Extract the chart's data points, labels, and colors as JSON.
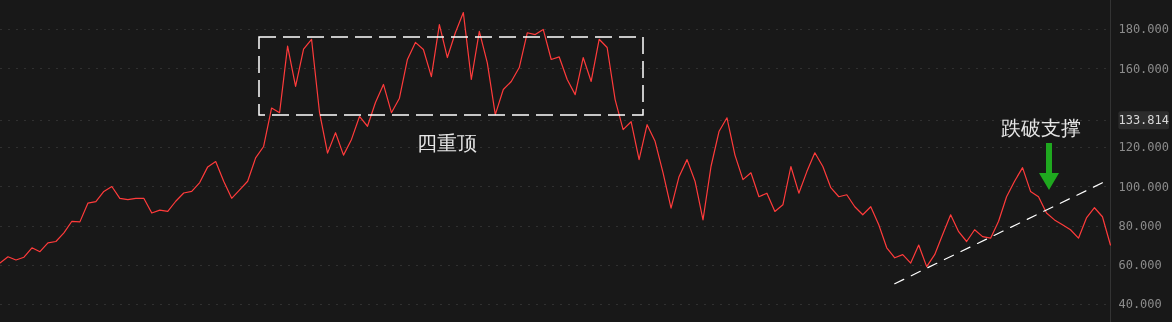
{
  "chart_data": {
    "type": "line",
    "categories": [
      null,
      null,
      null,
      null,
      null,
      null,
      null,
      null,
      null,
      null,
      null,
      null,
      null,
      null,
      null,
      null,
      null,
      null,
      null,
      null,
      null,
      null,
      null,
      null,
      null,
      null,
      null,
      null,
      null,
      null,
      null,
      null,
      null,
      null,
      null,
      null,
      null,
      null,
      null,
      null,
      null,
      null,
      null,
      null,
      null,
      null,
      null,
      null,
      null,
      null,
      null,
      null,
      null,
      null,
      null,
      null,
      null,
      null,
      null,
      null,
      null,
      null,
      null,
      null,
      null,
      null,
      null,
      null,
      null,
      null,
      null,
      null,
      null,
      null,
      null,
      null,
      null,
      null,
      null,
      null,
      null,
      null,
      null,
      null,
      null,
      null,
      null,
      null,
      null,
      null,
      null,
      null,
      null,
      null,
      null,
      null,
      null,
      null,
      null,
      null,
      null,
      null,
      null,
      null,
      null,
      null,
      null,
      null,
      null,
      null,
      null,
      null,
      null,
      null,
      null,
      null,
      null,
      null,
      null,
      null,
      null,
      null,
      null,
      null,
      null,
      null,
      null,
      null,
      null,
      null,
      null,
      null,
      null,
      null,
      null,
      null,
      null,
      null,
      null,
      null
    ],
    "series": [
      {
        "color": "#ff3b3b",
        "values": [
          61.1,
          64.2,
          62.6,
          64,
          68.8,
          66.8,
          71.3,
          72,
          76.4,
          82.3,
          82,
          91.5,
          92.3,
          97.5,
          100,
          94,
          93.3,
          94,
          94,
          86.5,
          88,
          87.3,
          92.5,
          96.7,
          97.5,
          102,
          110,
          112.7,
          102.7,
          94,
          98.3,
          102.7,
          114.6,
          120.4,
          140,
          137.6,
          171.5,
          151,
          170,
          175,
          137.6,
          117,
          127.4,
          116,
          124,
          135.7,
          130.7,
          142.8,
          152,
          137.6,
          145,
          164.7,
          173.4,
          169.8,
          156,
          182.5,
          165.7,
          178.3,
          188.6,
          154.5,
          179,
          163,
          136.6,
          149.4,
          153.5,
          160.6,
          178.3,
          177.4,
          180,
          164.7,
          166,
          154.5,
          146.8,
          165.7,
          153.5,
          175,
          170.8,
          144.3,
          129,
          133,
          113.7,
          131.5,
          123,
          107,
          89,
          105,
          113.7,
          102.7,
          83,
          110.2,
          128,
          135,
          116,
          103.5,
          107,
          94.8,
          96.6,
          87.3,
          90.7,
          110.2,
          96.6,
          107.6,
          117.2,
          110.2,
          99.4,
          94.8,
          95.8,
          89.7,
          85.6,
          89.7,
          80.5,
          68.8,
          63.7,
          65.3,
          61,
          70.2,
          59.2,
          65.3,
          75.6,
          85.6,
          77,
          72,
          78,
          74.5,
          73.7,
          82.3,
          94.8,
          102.7,
          109.6,
          97.5,
          94.8,
          86.5,
          83,
          80.5,
          78,
          73.7,
          84,
          89.2,
          84.6,
          70.2
        ]
      },
      {
        "color": "#ffffff",
        "line_style": "dashed",
        "values": [
          null,
          null,
          null,
          null,
          null,
          null,
          null,
          null,
          null,
          null,
          null,
          null,
          null,
          null,
          null,
          null,
          null,
          null,
          null,
          null,
          null,
          null,
          null,
          null,
          null,
          null,
          null,
          null,
          null,
          null,
          null,
          null,
          null,
          null,
          null,
          null,
          null,
          null,
          null,
          null,
          null,
          null,
          null,
          null,
          null,
          null,
          null,
          null,
          null,
          null,
          null,
          null,
          null,
          null,
          null,
          null,
          null,
          null,
          null,
          null,
          null,
          null,
          null,
          null,
          null,
          null,
          null,
          null,
          null,
          null,
          null,
          null,
          null,
          null,
          null,
          null,
          null,
          null,
          null,
          null,
          null,
          null,
          null,
          null,
          null,
          null,
          null,
          null,
          null,
          null,
          null,
          null,
          null,
          null,
          null,
          null,
          null,
          null,
          null,
          null,
          null,
          null,
          null,
          null,
          null,
          null,
          null,
          null,
          null,
          null,
          null,
          null,
          50.5,
          null,
          null,
          null,
          null,
          null,
          null,
          null,
          null,
          null,
          null,
          null,
          null,
          null,
          null,
          null,
          null,
          null,
          null,
          null,
          null,
          null,
          null,
          null,
          null,
          null,
          101.9,
          null
        ]
      }
    ],
    "ylim": [
      31,
      195
    ],
    "yticks": [
      {
        "value": 40,
        "label": "40.000"
      },
      {
        "value": 60,
        "label": "60.000"
      },
      {
        "value": 80,
        "label": "80.000"
      },
      {
        "value": 100,
        "label": "100.000"
      },
      {
        "value": 120,
        "label": "120.000"
      },
      {
        "value": 133.814,
        "label": "133.814"
      },
      {
        "value": 160,
        "label": "160.000"
      },
      {
        "value": 180,
        "label": "180.000"
      }
    ],
    "tick_labels": "y",
    "grid": "y",
    "annotations": [
      "四重顶",
      "跌破支撑"
    ]
  }
}
